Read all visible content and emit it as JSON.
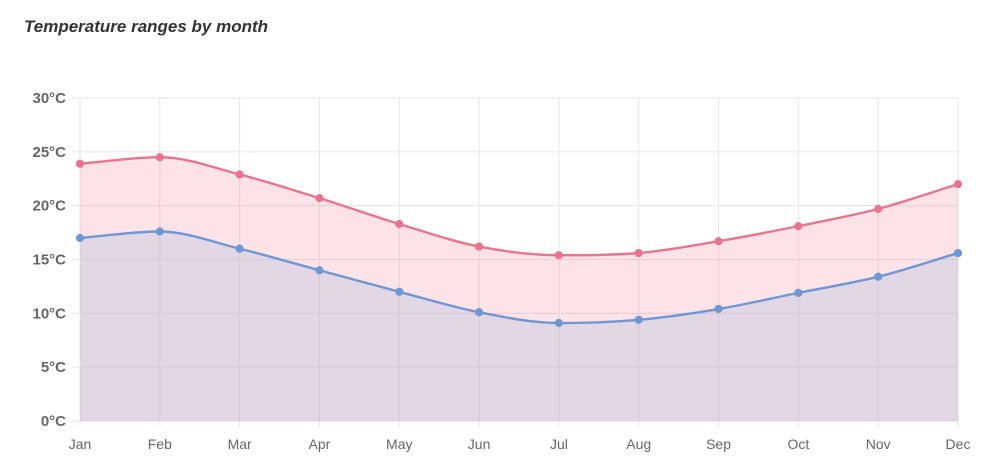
{
  "chart_data": {
    "type": "area",
    "title": "Temperature ranges by month",
    "xlabel": "",
    "ylabel": "",
    "categories": [
      "Jan",
      "Feb",
      "Mar",
      "Apr",
      "May",
      "Jun",
      "Jul",
      "Aug",
      "Sep",
      "Oct",
      "Nov",
      "Dec"
    ],
    "ylim": [
      0,
      30
    ],
    "yticks": [
      0,
      5,
      10,
      15,
      20,
      25,
      30
    ],
    "ytick_labels": [
      "0°C",
      "5°C",
      "10°C",
      "15°C",
      "20°C",
      "25°C",
      "30°C"
    ],
    "grid": true,
    "legend": "none",
    "series": [
      {
        "key": "high",
        "values": [
          23.9,
          24.5,
          22.9,
          20.7,
          18.3,
          16.2,
          15.4,
          15.6,
          16.7,
          18.1,
          19.7,
          22.0
        ],
        "color": "#e9748c",
        "fill": "rgba(233, 116, 140, 0.2)"
      },
      {
        "key": "low",
        "values": [
          17.0,
          17.6,
          16.0,
          14.0,
          12.0,
          10.1,
          9.1,
          9.4,
          10.4,
          11.9,
          13.4,
          15.6
        ],
        "color": "#6f97d4",
        "fill": "rgba(173, 190, 222, 0.3)"
      }
    ]
  }
}
